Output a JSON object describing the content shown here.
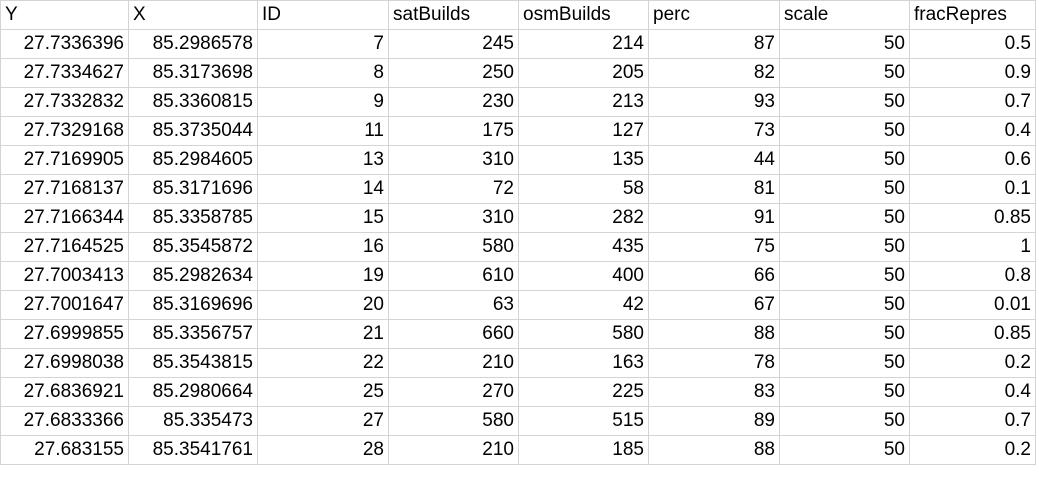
{
  "headers": [
    "Y",
    "X",
    "ID",
    "satBuilds",
    "osmBuilds",
    "perc",
    "scale",
    "fracRepres"
  ],
  "rows": [
    [
      "27.7336396",
      "85.2986578",
      "7",
      "245",
      "214",
      "87",
      "50",
      "0.5"
    ],
    [
      "27.7334627",
      "85.3173698",
      "8",
      "250",
      "205",
      "82",
      "50",
      "0.9"
    ],
    [
      "27.7332832",
      "85.3360815",
      "9",
      "230",
      "213",
      "93",
      "50",
      "0.7"
    ],
    [
      "27.7329168",
      "85.3735044",
      "11",
      "175",
      "127",
      "73",
      "50",
      "0.4"
    ],
    [
      "27.7169905",
      "85.2984605",
      "13",
      "310",
      "135",
      "44",
      "50",
      "0.6"
    ],
    [
      "27.7168137",
      "85.3171696",
      "14",
      "72",
      "58",
      "81",
      "50",
      "0.1"
    ],
    [
      "27.7166344",
      "85.3358785",
      "15",
      "310",
      "282",
      "91",
      "50",
      "0.85"
    ],
    [
      "27.7164525",
      "85.3545872",
      "16",
      "580",
      "435",
      "75",
      "50",
      "1"
    ],
    [
      "27.7003413",
      "85.2982634",
      "19",
      "610",
      "400",
      "66",
      "50",
      "0.8"
    ],
    [
      "27.7001647",
      "85.3169696",
      "20",
      "63",
      "42",
      "67",
      "50",
      "0.01"
    ],
    [
      "27.6999855",
      "85.3356757",
      "21",
      "660",
      "580",
      "88",
      "50",
      "0.85"
    ],
    [
      "27.6998038",
      "85.3543815",
      "22",
      "210",
      "163",
      "78",
      "50",
      "0.2"
    ],
    [
      "27.6836921",
      "85.2980664",
      "25",
      "270",
      "225",
      "83",
      "50",
      "0.4"
    ],
    [
      "27.6833366",
      "85.335473",
      "27",
      "580",
      "515",
      "89",
      "50",
      "0.7"
    ],
    [
      "27.683155",
      "85.3541761",
      "28",
      "210",
      "185",
      "88",
      "50",
      "0.2"
    ]
  ]
}
